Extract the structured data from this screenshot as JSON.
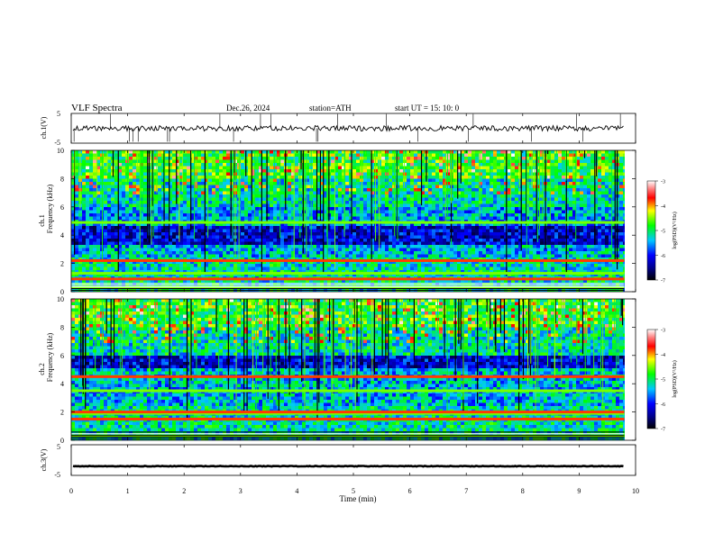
{
  "header": {
    "title": "VLF  Spectra",
    "date": "Dec.26, 2024",
    "station": "station=ATH",
    "start_ut": "start  UT  =    15: 10: 0"
  },
  "chart_data": {
    "type": "heatmap",
    "x_axis": {
      "label": "Time  (min)",
      "range": [
        0,
        10
      ],
      "ticks": [
        "0",
        "1",
        "2",
        "3",
        "4",
        "5",
        "6",
        "7",
        "8",
        "9",
        "10"
      ]
    },
    "panels": [
      {
        "id": "ch1-waveform",
        "type": "line",
        "ylabel": "ch.1(V)",
        "yticks": [
          "5",
          "-5"
        ],
        "ylim": [
          -5,
          5
        ],
        "baseline_v": 0,
        "data_end_min": 9.8
      },
      {
        "id": "ch1-spectrogram",
        "type": "heatmap",
        "ylabel_line1": "ch.1",
        "ylabel_line2": "Frequency  (kHz)",
        "yticks": [
          "0",
          "2",
          "4",
          "6",
          "8",
          "10"
        ],
        "ylim_khz": [
          0,
          10
        ],
        "colorbar": {
          "label": "log(PSD)(V²/Hz)",
          "ticks": [
            "-3",
            "-4",
            "-5",
            "-6",
            "-7"
          ],
          "range": [
            -7,
            -3
          ]
        },
        "bands_khz": [
          0.3,
          0.9,
          1.3,
          2.2,
          4.9
        ],
        "quiet_band_khz": [
          3.4,
          4.7
        ],
        "data_end_min": 9.8
      },
      {
        "id": "ch2-spectrogram",
        "type": "heatmap",
        "ylabel_line1": "ch.2",
        "ylabel_line2": "Frequency  (kHz)",
        "yticks": [
          "0",
          "2",
          "4",
          "6",
          "8",
          "10"
        ],
        "ylim_khz": [
          0,
          10
        ],
        "colorbar": {
          "label": "log(PSD)(V²/Hz)",
          "ticks": [
            "-3",
            "-4",
            "-5",
            "-6",
            "-7"
          ],
          "range": [
            -7,
            -3
          ]
        },
        "bands_khz": [
          0.3,
          1.5,
          1.9,
          2.0,
          3.5,
          4.5
        ],
        "quiet_band_khz": [
          5.3,
          6.3
        ],
        "data_end_min": 9.8
      },
      {
        "id": "ch3-waveform",
        "type": "line",
        "ylabel": "ch.3(V)",
        "yticks": [
          "5",
          "-5"
        ],
        "ylim": [
          -5,
          5
        ],
        "baseline_v": -2,
        "data_end_min": 9.8
      }
    ]
  }
}
